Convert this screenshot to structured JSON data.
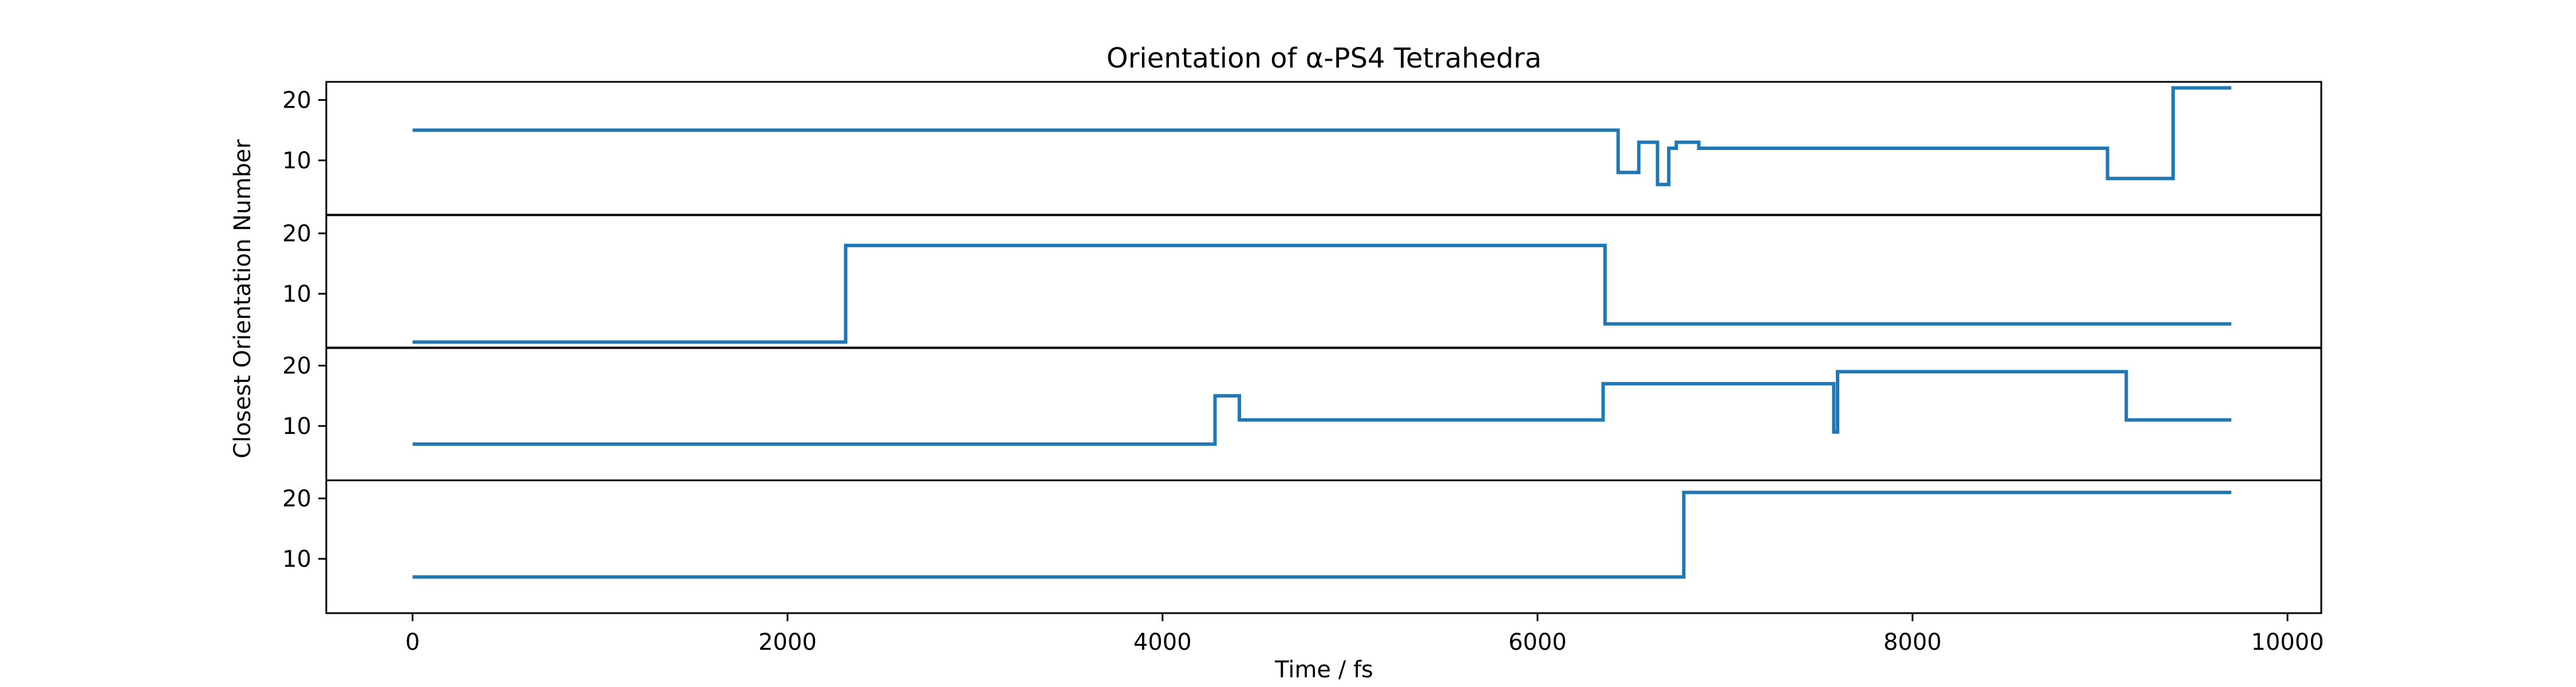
{
  "chart_data": {
    "type": "line",
    "title": "Orientation of α-PS4 Tetrahedra",
    "xlabel": "Time / fs",
    "ylabel": "Closest Orientation Number",
    "xlim": [
      -460,
      10180
    ],
    "x_ticks": [
      0,
      2000,
      4000,
      6000,
      8000,
      10000
    ],
    "x_tick_labels": [
      "0",
      "2000",
      "4000",
      "6000",
      "8000",
      "10000"
    ],
    "y_ticks": [
      10,
      20
    ],
    "y_tick_labels": [
      "10",
      "20"
    ],
    "line_color": "#1f77b4",
    "grid": false,
    "step": "post",
    "panels": [
      {
        "ylim": [
          1,
          23
        ],
        "series": {
          "x": [
            0,
            6430,
            6540,
            6640,
            6700,
            6740,
            6860,
            9040,
            9390,
            9700
          ],
          "y": [
            15,
            8,
            13,
            6,
            12,
            13,
            12,
            7,
            22,
            22
          ]
        }
      },
      {
        "ylim": [
          1,
          23
        ],
        "series": {
          "x": [
            0,
            2310,
            6360,
            9700
          ],
          "y": [
            2,
            18,
            5,
            5
          ]
        }
      },
      {
        "ylim": [
          1,
          23
        ],
        "series": {
          "x": [
            0,
            4280,
            4410,
            6350,
            7580,
            7600,
            9140,
            9700
          ],
          "y": [
            7,
            15,
            11,
            17,
            9,
            19,
            11,
            11
          ]
        }
      },
      {
        "ylim": [
          1,
          23
        ],
        "series": {
          "x": [
            0,
            6780,
            9700
          ],
          "y": [
            7,
            21,
            21
          ]
        }
      }
    ]
  }
}
